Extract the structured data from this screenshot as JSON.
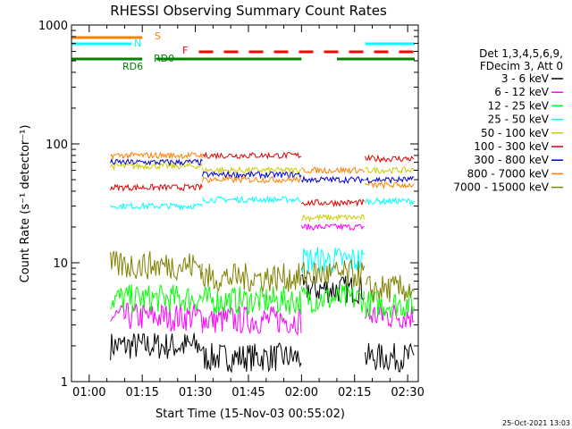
{
  "chart_data": {
    "type": "line",
    "title": "RHESSI Observing Summary Count Rates",
    "xlabel": "Start Time (15-Nov-03 00:55:02)",
    "ylabel": "Count Rate (s⁻¹ detector⁻¹)",
    "x_range_minutes": [
      55,
      153
    ],
    "y_log": true,
    "ylim": [
      1,
      1000
    ],
    "x_ticks": [
      {
        "minute": 60,
        "label": "01:00"
      },
      {
        "minute": 75,
        "label": "01:15"
      },
      {
        "minute": 90,
        "label": "01:30"
      },
      {
        "minute": 105,
        "label": "01:45"
      },
      {
        "minute": 120,
        "label": "02:00"
      },
      {
        "minute": 135,
        "label": "02:15"
      },
      {
        "minute": 150,
        "label": "02:30"
      }
    ],
    "y_ticks": [
      {
        "value": 1,
        "label": "1"
      },
      {
        "value": 10,
        "label": "10"
      },
      {
        "value": 100,
        "label": "100"
      },
      {
        "value": 1000,
        "label": "1000"
      }
    ],
    "legend_header": [
      "Det 1,3,4,5,6,9,",
      "FDecim 3, Att 0"
    ],
    "legend_position": "right",
    "segments": [
      [
        55,
        66
      ],
      [
        66,
        92
      ],
      [
        92,
        120
      ],
      [
        120,
        138
      ],
      [
        138,
        152
      ]
    ],
    "series": [
      {
        "name": "3 - 6 keV",
        "color": "#000000",
        "values": [
          null,
          2,
          1.6,
          6,
          1.6
        ]
      },
      {
        "name": "6 - 12 keV",
        "color": "#ff00ff",
        "values": [
          null,
          3.5,
          3.3,
          20,
          3.6
        ]
      },
      {
        "name": "12 - 25 keV",
        "color": "#00ff00",
        "values": [
          null,
          5,
          4.8,
          5,
          4.5
        ]
      },
      {
        "name": "25 - 50 keV",
        "color": "#00ffff",
        "values": [
          null,
          30,
          34,
          10.5,
          33
        ]
      },
      {
        "name": "50 - 100 keV",
        "color": "#cccc00",
        "values": [
          null,
          65,
          60,
          24,
          60
        ]
      },
      {
        "name": "100 - 300 keV",
        "color": "#dd0000",
        "values": [
          null,
          43,
          80,
          32,
          75
        ]
      },
      {
        "name": "300 - 800 keV",
        "color": "#0000cc",
        "values": [
          null,
          70,
          55,
          50,
          50
        ]
      },
      {
        "name": "800 - 7000 keV",
        "color": "#ff8000",
        "values": [
          null,
          80,
          50,
          60,
          45
        ]
      },
      {
        "name": "7000 - 15000 keV",
        "color": "#808000",
        "values": [
          null,
          9.5,
          7.5,
          8,
          6
        ]
      }
    ],
    "flags": [
      {
        "label": "S",
        "color": "#ff8000"
      },
      {
        "label": "N",
        "color": "#00ffff"
      },
      {
        "label": "F",
        "color": "#ff0000"
      },
      {
        "label": "RD0",
        "color": "#008000"
      },
      {
        "label": "RD6",
        "color": "#008000"
      }
    ],
    "timestamp": "25-Oct-2021 13:03"
  }
}
